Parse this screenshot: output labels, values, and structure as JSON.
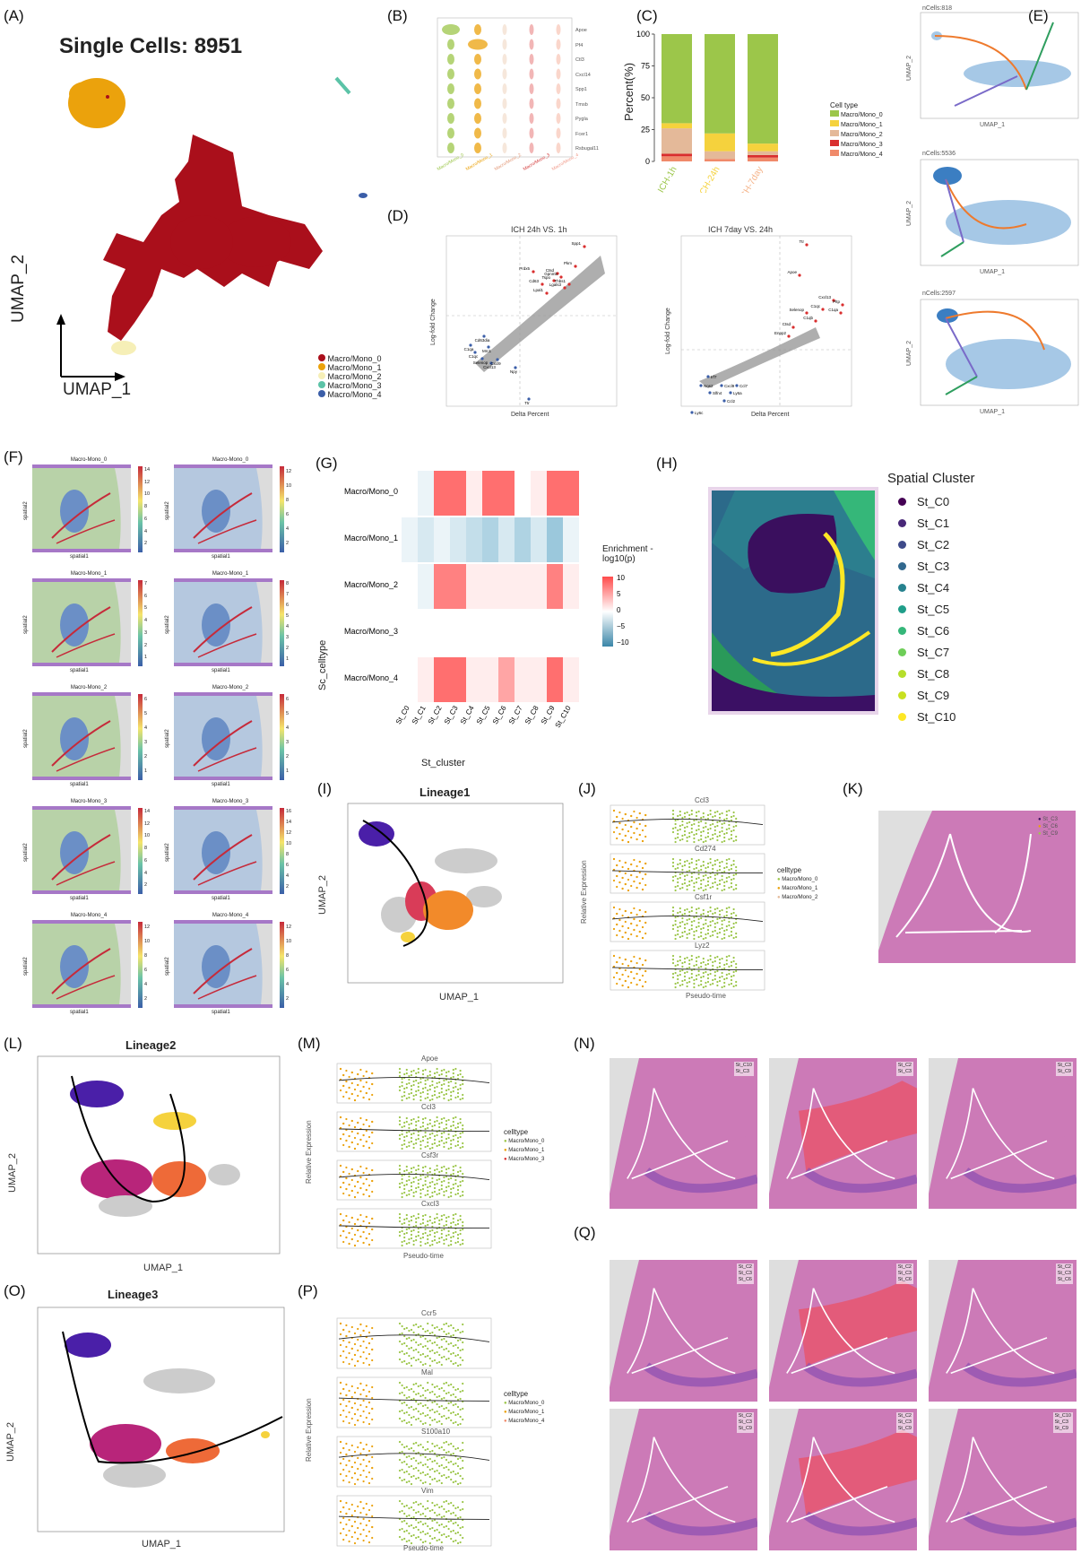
{
  "panel_labels": {
    "A": "(A)",
    "B": "(B)",
    "C": "(C)",
    "D": "(D)",
    "E": "(E)",
    "F": "(F)",
    "G": "(G)",
    "H": "(H)",
    "I": "(I)",
    "J": "(J)",
    "K": "(K)",
    "L": "(L)",
    "M": "(M)",
    "N": "(N)",
    "O": "(O)",
    "P": "(P)",
    "Q": "(Q)"
  },
  "colors": {
    "mono0": "#aa0f1b",
    "mono1": "#eba20c",
    "mono2": "#f6efb7",
    "mono3": "#5bc3a7",
    "mono4": "#3b5ea8",
    "violetP": "#f6d2e0",
    "lime": "#9cc64a",
    "tissue": "#d88ac0",
    "stpurple": "#3a0f5e"
  },
  "panelA": {
    "title": "Single Cells: 8951",
    "xlabel": "UMAP_1",
    "ylabel": "UMAP_2",
    "legend": [
      "Macro/Mono_0",
      "Macro/Mono_1",
      "Macro/Mono_2",
      "Macro/Mono_3",
      "Macro/Mono_4"
    ]
  },
  "panelB": {
    "genes": [
      "Apoe",
      "Pf4",
      "Ctl3",
      "Cxcl14",
      "Spp1",
      "Tmsb",
      "Pygla",
      "Fcer1",
      "Rsbugal11"
    ],
    "clusters": [
      "Macro/Mono_0",
      "Macro/Mono_1",
      "Macro/Mono_2",
      "Macro/Mono_3",
      "Macro/Mono_4"
    ]
  },
  "panelC": {
    "ylabel": "Percent(%)",
    "legend_title": "Cell type",
    "legend": [
      "Macro/Mono_0",
      "Macro/Mono_1",
      "Macro/Mono_2",
      "Macro/Mono_3",
      "Macro/Mono_4"
    ],
    "yticks": [
      "0",
      "25",
      "50",
      "75",
      "100"
    ]
  },
  "chart_data": {
    "type": "bar",
    "categories": [
      "ICH-1h",
      "ICH-24h",
      "ICH-7day"
    ],
    "series": [
      {
        "name": "Macro/Mono_0",
        "values": [
          70,
          78,
          86
        ]
      },
      {
        "name": "Macro/Mono_1",
        "values": [
          4,
          14,
          6
        ]
      },
      {
        "name": "Macro/Mono_2",
        "values": [
          20,
          6,
          3
        ]
      },
      {
        "name": "Macro/Mono_3",
        "values": [
          2,
          0,
          2
        ]
      },
      {
        "name": "Macro/Mono_4",
        "values": [
          4,
          2,
          3
        ]
      }
    ],
    "ylabel": "Percent(%)",
    "ylim": [
      0,
      100
    ]
  },
  "panelD": {
    "left": {
      "title": "ICH 24h VS. 1h",
      "xlabel": "Delta Percent",
      "ylabel": "Log-fold Change",
      "up": [
        "Spp1",
        "Prdx5",
        "Ctsd",
        "Tspo",
        "Cd63",
        "Lgals3",
        "Pkm",
        "Gpnmb",
        "Thbs1",
        "Lpal1"
      ],
      "down": [
        "Cd63dia",
        "C1qa",
        "C1qc",
        "Mrc1",
        "Selenop",
        "Cxcl13",
        "Cxcl9",
        "Npy",
        "Ttr"
      ]
    },
    "right": {
      "title": "ICH 7day VS. 24h",
      "xlabel": "Delta Percent",
      "ylabel": "Log-fold Change",
      "up": [
        "Ttr",
        "Apoe",
        "Cxcl13",
        "C1qc",
        "Pltp",
        "Selenop",
        "C1qa",
        "C1qb",
        "Ctsd",
        "Enpp2"
      ],
      "down": [
        "Irf7",
        "Nos2",
        "Ccl7",
        "Cxcl9",
        "Slfn4",
        "Ly6a",
        "Ccl2",
        "Ly6c"
      ]
    }
  },
  "panelE": {
    "titles": [
      "nCells:818",
      "nCells:5536",
      "nCells:2597"
    ],
    "xlabel": "UMAP_1",
    "ylabel": "UMAP_2"
  },
  "panelF": {
    "titles": [
      "Macro-Mono_0",
      "Macro-Mono_0",
      "Macro-Mono_1",
      "Macro-Mono_1",
      "Macro-Mono_2",
      "Macro-Mono_2",
      "Macro-Mono_3",
      "Macro-Mono_3",
      "Macro-Mono_4",
      "Macro-Mono_4"
    ],
    "xlabel": "spatial1",
    "ylabel": "spatial2",
    "scales": [
      [
        "14",
        "12",
        "10",
        "8",
        "6",
        "4",
        "2"
      ],
      [
        "12",
        "10",
        "8",
        "6",
        "4",
        "2"
      ],
      [
        "7",
        "6",
        "5",
        "4",
        "3",
        "2",
        "1"
      ],
      [
        "8",
        "7",
        "6",
        "5",
        "4",
        "3",
        "2",
        "1"
      ],
      [
        "6",
        "5",
        "4",
        "3",
        "2",
        "1"
      ],
      [
        "6",
        "5",
        "4",
        "3",
        "2",
        "1"
      ],
      [
        "14",
        "12",
        "10",
        "8",
        "6",
        "4",
        "2"
      ],
      [
        "16",
        "14",
        "12",
        "10",
        "8",
        "6",
        "4",
        "2"
      ],
      [
        "12",
        "10",
        "8",
        "6",
        "4",
        "2"
      ],
      [
        "12",
        "10",
        "8",
        "6",
        "4",
        "2"
      ]
    ]
  },
  "panelG": {
    "rows": [
      "Macro/Mono_0",
      "Macro/Mono_1",
      "Macro/Mono_2",
      "Macro/Mono_3",
      "Macro/Mono_4"
    ],
    "cols": [
      "St_C0",
      "St_C1",
      "St_C2",
      "St_C3",
      "St_C4",
      "St_C5",
      "St_C6",
      "St_C7",
      "St_C8",
      "St_C9",
      "St_C10"
    ],
    "ylabel": "Sc_celltype",
    "xlabel": "St_cluster",
    "legend_title": "Enrichment -log10(p)",
    "legend_ticks": [
      "10",
      "5",
      "0",
      "−5",
      "−10"
    ]
  },
  "panelH": {
    "legend_title": "Spatial Cluster",
    "legend": [
      "St_C0",
      "St_C1",
      "St_C2",
      "St_C3",
      "St_C4",
      "St_C5",
      "St_C6",
      "St_C7",
      "St_C8",
      "St_C9",
      "St_C10"
    ],
    "legend_colors": [
      "#440154",
      "#482878",
      "#3e4a89",
      "#31688e",
      "#26828e",
      "#1f9e89",
      "#35b779",
      "#6ece58",
      "#b5de2b",
      "#c8e020",
      "#fde725"
    ]
  },
  "panelI": {
    "title": "Lineage1",
    "xlabel": "UMAP_1",
    "ylabel": "UMAP_2"
  },
  "panelJ": {
    "genes": [
      "Ccl3",
      "Cd274",
      "Csf1r",
      "Lyz2"
    ],
    "xlabel": "Pseudo-time",
    "ylabel": "Relative Expression",
    "legend_title": "celltype",
    "legend": [
      "Macro/Mono_0",
      "Macro/Mono_1",
      "Macro/Mono_2"
    ]
  },
  "panelK": {
    "legend": [
      "St_C3",
      "St_C6",
      "St_C9"
    ]
  },
  "panelL": {
    "title": "Lineage2",
    "xlabel": "UMAP_1",
    "ylabel": "UMAP_2"
  },
  "panelM": {
    "genes": [
      "Apoe",
      "Ccl3",
      "Csf3r",
      "Cxcl3"
    ],
    "xlabel": "Pseudo-time",
    "ylabel": "Relative Expression",
    "legend_title": "celltype",
    "legend": [
      "Macro/Mono_0",
      "Macro/Mono_1",
      "Macro/Mono_3"
    ]
  },
  "panelN": {
    "legends": [
      [
        "St_C10",
        "St_C3"
      ],
      [
        "St_C2",
        "St_C3"
      ],
      [
        "St_C3",
        "St_C9"
      ]
    ]
  },
  "panelO": {
    "title": "Lineage3",
    "xlabel": "UMAP_1",
    "ylabel": "UMAP_2"
  },
  "panelP": {
    "genes": [
      "Ccr5",
      "Mal",
      "S100a10",
      "Vim"
    ],
    "xlabel": "Pseudo-time",
    "ylabel": "Relative Expression",
    "legend_title": "celltype",
    "legend": [
      "Macro/Mono_0",
      "Macro/Mono_1",
      "Macro/Mono_4"
    ]
  },
  "panelQ": {
    "legends": [
      [
        "St_C2",
        "St_C3",
        "St_C6"
      ],
      [
        "St_C2",
        "St_C3",
        "St_C6"
      ],
      [
        "St_C2",
        "St_C3",
        "St_C6"
      ],
      [
        "St_C2",
        "St_C3",
        "St_C9"
      ],
      [
        "St_C2",
        "St_C3",
        "St_C9"
      ],
      [
        "St_C10",
        "St_C3",
        "St_C9"
      ]
    ]
  }
}
